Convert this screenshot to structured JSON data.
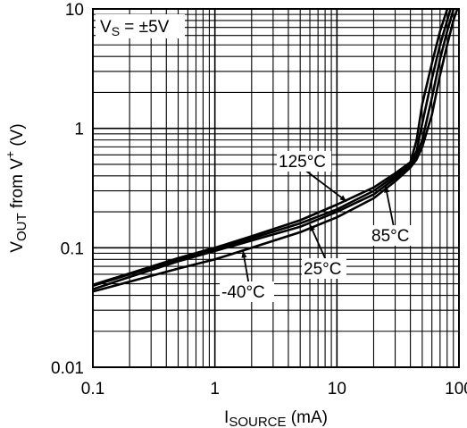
{
  "chart_data": {
    "type": "line",
    "x_scale": "log",
    "y_scale": "log",
    "xlim": [
      0.1,
      100
    ],
    "ylim": [
      0.01,
      10
    ],
    "x_ticks": [
      "0.1",
      "1",
      "10",
      "100"
    ],
    "y_ticks": [
      "0.01",
      "0.1",
      "1",
      "10"
    ],
    "grid": true,
    "xlabel": {
      "main": "I",
      "sub": "SOURCE",
      "unit": " (mA)"
    },
    "ylabel": {
      "v": "V",
      "sub": "OUT",
      "mid": " from V",
      "sup": "+",
      "unit": " (V)"
    },
    "annotation": {
      "v": "V",
      "sub": "S",
      "rest": " = ±5V"
    },
    "series": [
      {
        "name": "125°C",
        "points": [
          [
            0.1,
            0.049
          ],
          [
            0.2,
            0.061
          ],
          [
            0.5,
            0.082
          ],
          [
            1,
            0.1
          ],
          [
            2,
            0.125
          ],
          [
            5,
            0.17
          ],
          [
            10,
            0.23
          ],
          [
            20,
            0.32
          ],
          [
            30,
            0.42
          ],
          [
            40,
            0.52
          ],
          [
            45,
            0.8
          ],
          [
            50,
            1.6
          ],
          [
            60,
            3.5
          ],
          [
            70,
            6.5
          ],
          [
            85,
            12
          ]
        ]
      },
      {
        "name": "85°C",
        "points": [
          [
            0.1,
            0.048
          ],
          [
            0.2,
            0.06
          ],
          [
            0.5,
            0.08
          ],
          [
            1,
            0.098
          ],
          [
            2,
            0.12
          ],
          [
            5,
            0.16
          ],
          [
            10,
            0.21
          ],
          [
            20,
            0.3
          ],
          [
            30,
            0.4
          ],
          [
            40,
            0.5
          ],
          [
            45,
            0.65
          ],
          [
            50,
            1.1
          ],
          [
            60,
            2.6
          ],
          [
            70,
            5
          ],
          [
            80,
            8
          ],
          [
            90,
            12
          ]
        ]
      },
      {
        "name": "25°C",
        "points": [
          [
            0.1,
            0.045
          ],
          [
            0.2,
            0.057
          ],
          [
            0.5,
            0.077
          ],
          [
            1,
            0.094
          ],
          [
            2,
            0.115
          ],
          [
            5,
            0.15
          ],
          [
            10,
            0.2
          ],
          [
            20,
            0.28
          ],
          [
            30,
            0.38
          ],
          [
            40,
            0.48
          ],
          [
            45,
            0.6
          ],
          [
            50,
            0.8
          ],
          [
            60,
            1.8
          ],
          [
            70,
            3.8
          ],
          [
            80,
            6.5
          ],
          [
            95,
            12
          ]
        ]
      },
      {
        "name": "-40°C",
        "points": [
          [
            0.1,
            0.043
          ],
          [
            0.2,
            0.052
          ],
          [
            0.5,
            0.067
          ],
          [
            1,
            0.08
          ],
          [
            2,
            0.1
          ],
          [
            5,
            0.135
          ],
          [
            10,
            0.18
          ],
          [
            20,
            0.26
          ],
          [
            30,
            0.36
          ],
          [
            40,
            0.47
          ],
          [
            45,
            0.55
          ],
          [
            50,
            0.7
          ],
          [
            60,
            1.3
          ],
          [
            70,
            2.8
          ],
          [
            80,
            5
          ],
          [
            90,
            8
          ],
          [
            100,
            11
          ]
        ]
      }
    ],
    "labels": [
      {
        "text": "125°C",
        "series": "125°C",
        "at": [
          12,
          0.245
        ]
      },
      {
        "text": "85°C",
        "series": "85°C",
        "at": [
          25,
          0.33
        ]
      },
      {
        "text": "25°C",
        "series": "25°C",
        "at": [
          6,
          0.157
        ]
      },
      {
        "text": "-40°C",
        "series": "-40°C",
        "at": [
          1.7,
          0.094
        ]
      }
    ]
  }
}
